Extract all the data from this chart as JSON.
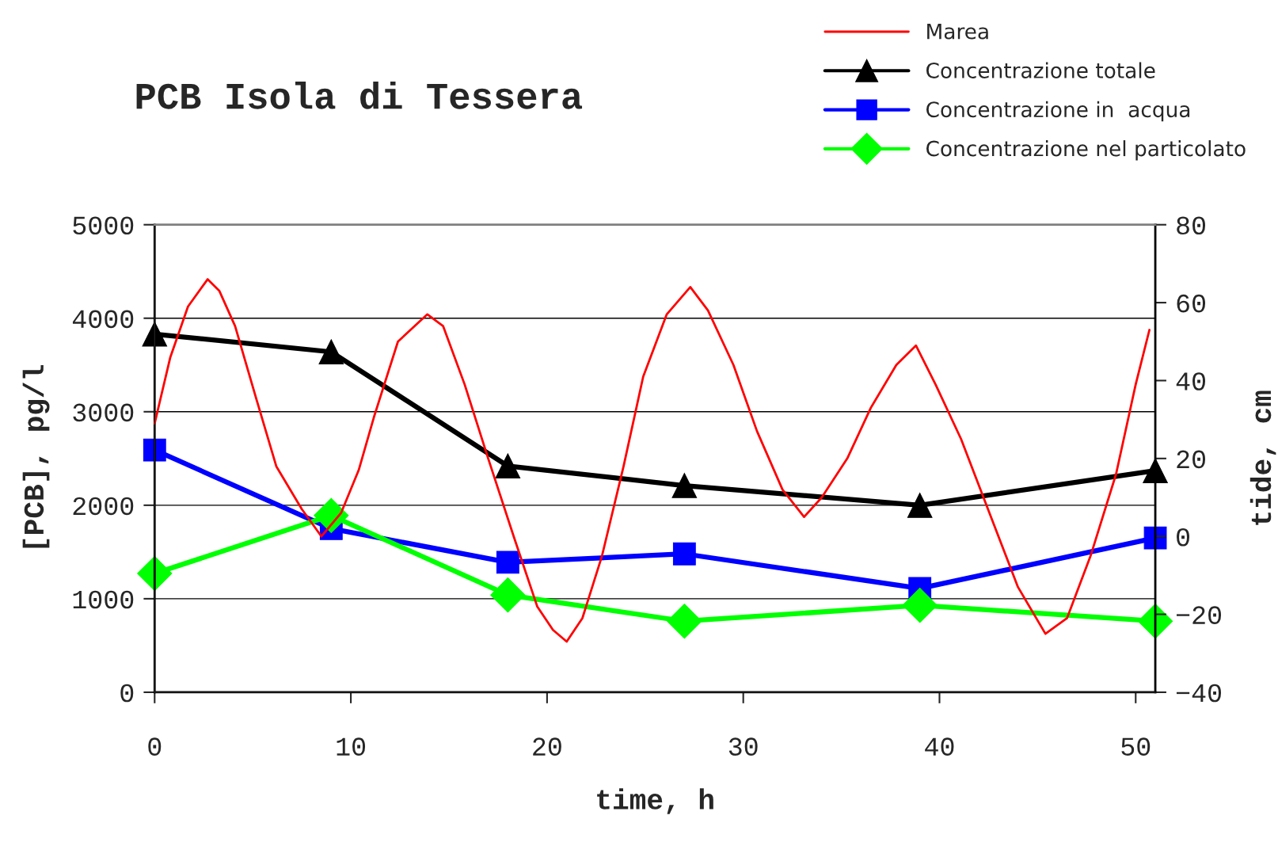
{
  "chart_data": {
    "type": "line",
    "title": "PCB Isola di Tessera",
    "xlabel": "time, h",
    "ylabel": "[PCB], pg/l",
    "y2label": "tide, cm",
    "xlim": [
      0,
      51
    ],
    "xticks": [
      0,
      10,
      20,
      30,
      40,
      50
    ],
    "ylim": [
      0,
      5000
    ],
    "yticks": [
      0,
      1000,
      2000,
      3000,
      4000,
      5000
    ],
    "y2lim": [
      -40,
      80
    ],
    "y2ticks": [
      -40,
      -20,
      0,
      20,
      40,
      60,
      80
    ],
    "grid": "y",
    "legend": "top right",
    "line_style": "solid",
    "series": [
      {
        "name": "Marea",
        "color": "#ff0000",
        "axis": "y2",
        "marker": "none",
        "x": [
          0,
          0.8,
          1.7,
          2.7,
          3.3,
          4.1,
          5.2,
          6.2,
          7.5,
          8.5,
          9.5,
          10.4,
          11.2,
          12.4,
          13.9,
          14.7,
          15.8,
          17.0,
          18.3,
          19.5,
          20.3,
          21.0,
          21.8,
          22.8,
          23.9,
          24.9,
          26.1,
          27.3,
          28.2,
          29.5,
          30.7,
          32.0,
          33.1,
          34.0,
          35.3,
          36.5,
          37.8,
          38.8,
          39.8,
          41.1,
          42.7,
          44.0,
          45.4,
          46.5,
          47.7,
          49.0,
          50.0,
          50.7
        ],
        "values": [
          29,
          46,
          59,
          66,
          63,
          54,
          35,
          18,
          7,
          0,
          6,
          17,
          31,
          50,
          57,
          54,
          39,
          20,
          0,
          -18,
          -24,
          -27,
          -21,
          -5,
          18,
          41,
          57,
          64,
          58,
          44,
          27,
          12,
          5,
          10,
          20,
          33,
          44,
          49,
          39,
          25,
          4,
          -13,
          -25,
          -21,
          -5,
          16,
          39,
          53
        ]
      },
      {
        "name": "Concentrazione totale",
        "color": "#000000",
        "marker": "triangle",
        "x": [
          0,
          9,
          18,
          27,
          39,
          51
        ],
        "values": [
          3830,
          3640,
          2420,
          2210,
          2000,
          2370
        ]
      },
      {
        "name": "Concentrazione in  acqua",
        "color": "#0000ff",
        "marker": "square",
        "x": [
          0,
          9,
          18,
          27,
          39,
          51
        ],
        "values": [
          2590,
          1750,
          1390,
          1480,
          1110,
          1650
        ]
      },
      {
        "name": "Concentrazione nel particolato",
        "color": "#00ff00",
        "marker": "diamond",
        "x": [
          0,
          9,
          18,
          27,
          39,
          51
        ],
        "values": [
          1270,
          1890,
          1040,
          760,
          930,
          760
        ]
      }
    ]
  }
}
